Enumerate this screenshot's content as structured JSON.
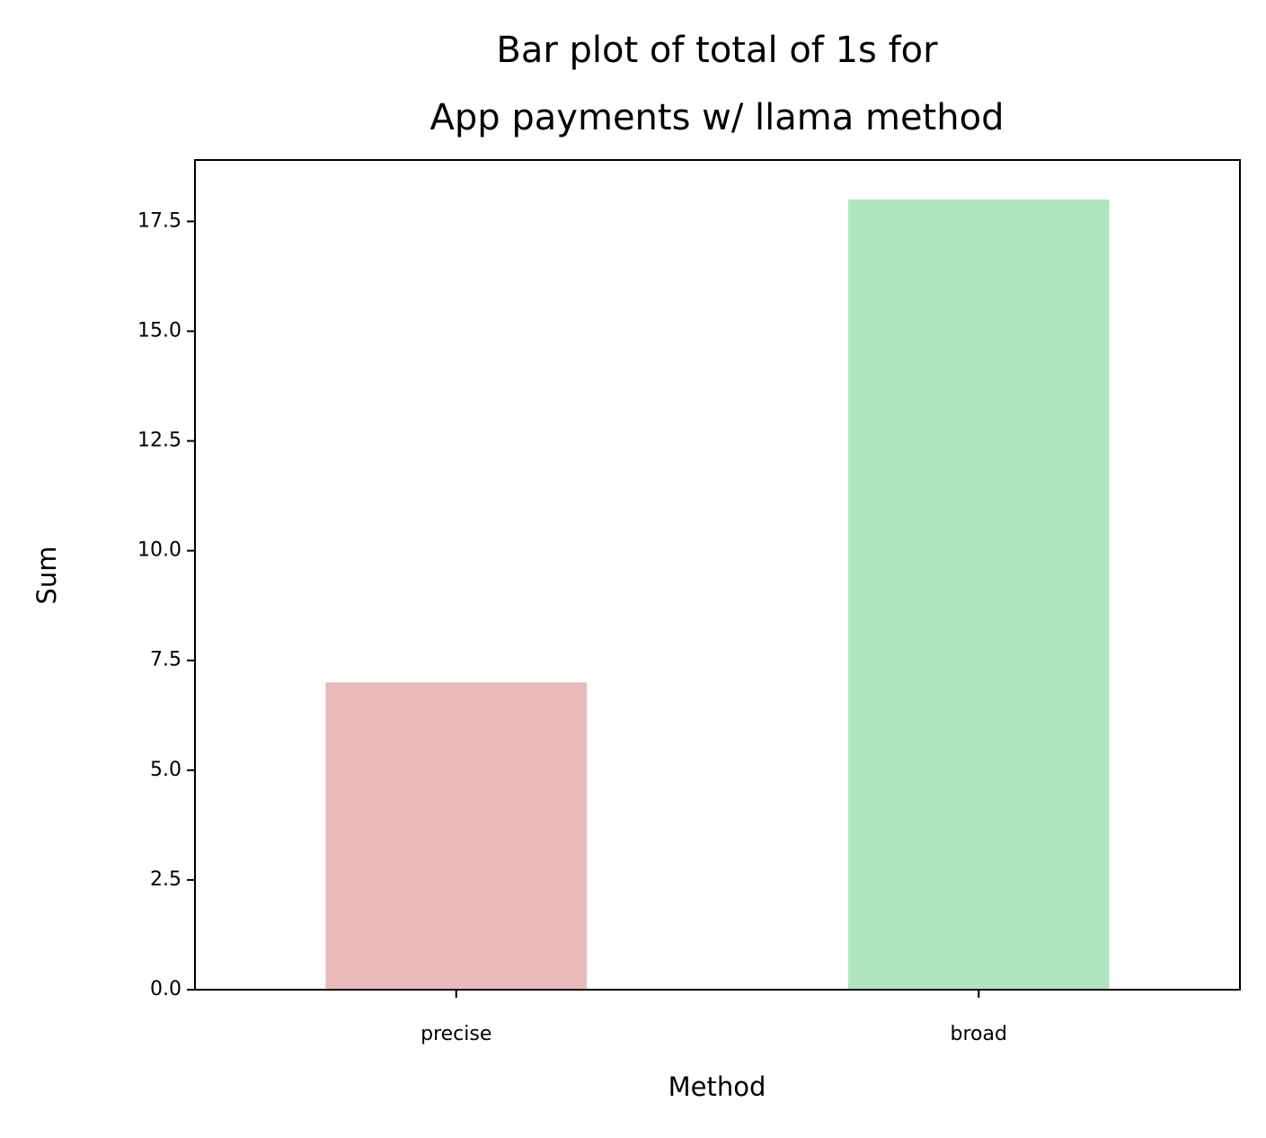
{
  "chart_data": {
    "type": "bar",
    "title": [
      "Bar plot of total of 1s for",
      "App payments w/ llama method"
    ],
    "x_label": "Method",
    "y_label": "Sum",
    "categories": [
      "precise",
      "broad"
    ],
    "values": [
      7,
      18
    ],
    "colors": [
      "#eababa",
      "#b0e6bf"
    ],
    "ylim": [
      0,
      18.9
    ],
    "yticks": [
      {
        "value": 0,
        "label": "0.0"
      },
      2.5,
      {
        "value": 5,
        "label": "5.0"
      },
      7.5,
      {
        "value": 10,
        "label": "10.0"
      },
      12.5,
      {
        "value": 15,
        "label": "15.0"
      },
      17.5
    ],
    "grid": false
  }
}
